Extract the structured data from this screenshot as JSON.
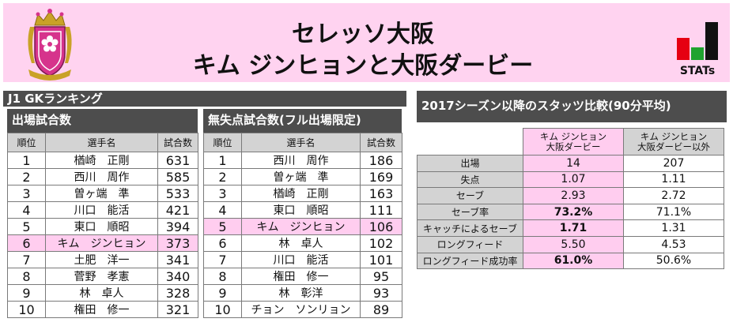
{
  "header": {
    "title_line1": "セレッソ大阪",
    "title_line2": "キム ジンヒョンと大阪ダービー",
    "stats_label": "STATs",
    "logo_icon": "cerezo-osaka-crest-icon",
    "colors": {
      "header_bg": "#ffd3f0",
      "highlight": "#ffcdef",
      "dark_bar": "#4d4d4d",
      "cell_gray": "#d3d3d3",
      "crest_pink": "#d6338c"
    }
  },
  "ranking": {
    "title": "J1 GKランキング",
    "appearances": {
      "title": "出場試合数",
      "columns": [
        "順位",
        "選手名",
        "試合数"
      ],
      "rows": [
        [
          "1",
          "楢崎　正剛",
          "631"
        ],
        [
          "2",
          "西川　周作",
          "585"
        ],
        [
          "3",
          "曽ヶ端　準",
          "533"
        ],
        [
          "4",
          "川口　能活",
          "421"
        ],
        [
          "5",
          "東口　順昭",
          "394"
        ],
        [
          "6",
          "キム　ジンヒョン",
          "373"
        ],
        [
          "7",
          "土肥　洋一",
          "341"
        ],
        [
          "8",
          "菅野　孝憲",
          "340"
        ],
        [
          "9",
          "林　卓人",
          "328"
        ],
        [
          "10",
          "権田　修一",
          "321"
        ]
      ],
      "highlight_row": 5
    },
    "clean_sheets": {
      "title": "無失点試合数(フル出場限定)",
      "columns": [
        "順位",
        "選手名",
        "試合数"
      ],
      "rows": [
        [
          "1",
          "西川　周作",
          "186"
        ],
        [
          "2",
          "曽ヶ端　準",
          "169"
        ],
        [
          "3",
          "楢崎　正剛",
          "163"
        ],
        [
          "4",
          "東口　順昭",
          "111"
        ],
        [
          "5",
          "キム　ジンヒョン",
          "106"
        ],
        [
          "6",
          "林　卓人",
          "102"
        ],
        [
          "7",
          "川口　能活",
          "101"
        ],
        [
          "8",
          "権田　修一",
          "95"
        ],
        [
          "9",
          "林　彰洋",
          "93"
        ],
        [
          "10",
          "チョン　ソンリョン",
          "89"
        ]
      ],
      "highlight_row": 4
    }
  },
  "comparison": {
    "title": "2017シーズン以降のスタッツ比較(90分平均)",
    "col1_line1": "キム ジンヒョン",
    "col1_line2": "大阪ダービー",
    "col2_line1": "キム ジンヒョン",
    "col2_line2": "大阪ダービー以外",
    "rows": [
      [
        "出場",
        "14",
        "207"
      ],
      [
        "失点",
        "1.07",
        "1.11"
      ],
      [
        "セーブ",
        "2.93",
        "2.72"
      ],
      [
        "セーブ率",
        "73.2%",
        "71.1%"
      ],
      [
        "キャッチによるセーブ",
        "1.71",
        "1.31"
      ],
      [
        "ロングフィード",
        "5.50",
        "4.53"
      ],
      [
        "ロングフィード成功率",
        "61.0%",
        "50.6%"
      ]
    ],
    "bold_rows": [
      3,
      4,
      6
    ]
  }
}
